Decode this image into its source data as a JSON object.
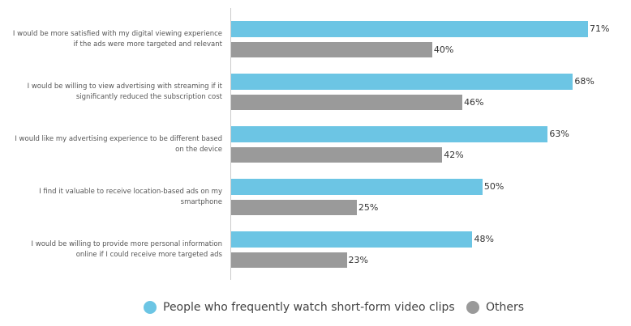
{
  "chart_data": {
    "type": "bar",
    "orientation": "horizontal",
    "categories": [
      "I would be more satisfied with my digital viewing experience if the ads were more targeted and relevant",
      "I would be willing to view advertising with streaming if it significantly reduced the subscription cost",
      "I would like my advertising experience to be different based on the device",
      "I find it valuable to receive location-based ads on my smartphone",
      "I would be willing to provide more personal information online if I could receive more targeted ads"
    ],
    "series": [
      {
        "name": "People who frequently watch short-form video clips",
        "color": "#6cc5e4",
        "values": [
          71,
          68,
          63,
          50,
          48
        ],
        "value_labels": [
          "71%",
          "68%",
          "63%",
          "50%",
          "48%"
        ]
      },
      {
        "name": "Others",
        "color": "#9a9a9a",
        "values": [
          40,
          46,
          42,
          25,
          23
        ],
        "value_labels": [
          "40%",
          "46%",
          "42%",
          "25%",
          "23%"
        ]
      }
    ],
    "legend": "bottom"
  }
}
